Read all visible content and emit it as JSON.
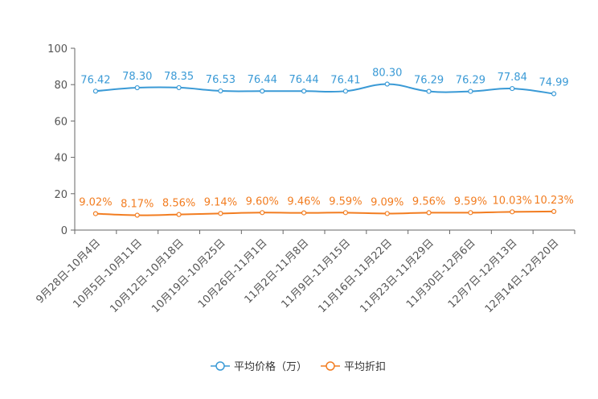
{
  "chart_data": {
    "type": "line",
    "title": "",
    "xlabel": "",
    "ylabel": "",
    "ylim": [
      0,
      100
    ],
    "yticks": [
      0,
      20,
      40,
      60,
      80,
      100
    ],
    "grid": false,
    "legend_position": "bottom-center",
    "categories": [
      "9月28日-10月4日",
      "10月5日-10月11日",
      "10月12日-10月18日",
      "10月19日-10月25日",
      "10月26日-11月1日",
      "11月2日-11月8日",
      "11月9日-11月15日",
      "11月16日-11月22日",
      "11月23日-11月29日",
      "11月30日-12月6日",
      "12月7日-12月13日",
      "12月14日-12月20日"
    ],
    "series": [
      {
        "name": "平均价格（万）",
        "color": "#3a9ad6",
        "values": [
          76.42,
          78.3,
          78.35,
          76.53,
          76.44,
          76.44,
          76.41,
          80.3,
          76.29,
          76.29,
          77.84,
          74.99
        ],
        "labels": [
          "76.42",
          "78.30",
          "78.35",
          "76.53",
          "76.44",
          "76.44",
          "76.41",
          "80.30",
          "76.29",
          "76.29",
          "77.84",
          "74.99"
        ]
      },
      {
        "name": "平均折扣",
        "color": "#f27d21",
        "values": [
          9.02,
          8.17,
          8.56,
          9.14,
          9.6,
          9.46,
          9.59,
          9.09,
          9.56,
          9.59,
          10.03,
          10.23
        ],
        "labels": [
          "9.02%",
          "8.17%",
          "8.56%",
          "9.14%",
          "9.60%",
          "9.46%",
          "9.59%",
          "9.09%",
          "9.56%",
          "9.59%",
          "10.03%",
          "10.23%"
        ]
      }
    ]
  }
}
